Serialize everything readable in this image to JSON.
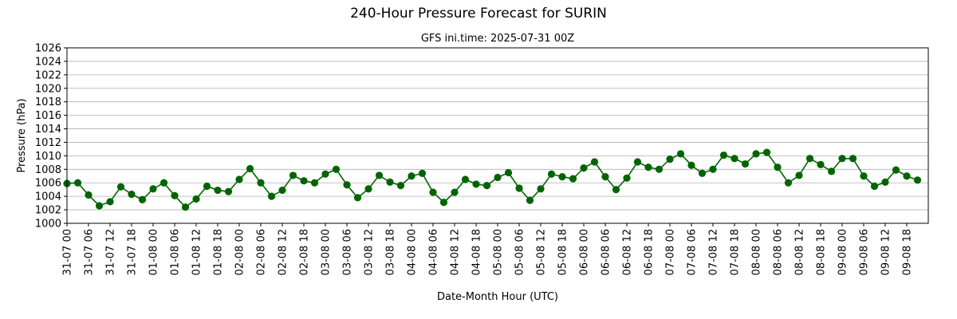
{
  "chart_data": {
    "type": "line",
    "title": "240-Hour Pressure Forecast for SURIN",
    "subtitle": "GFS ini.time: 2025-07-31 00Z",
    "xlabel": "Date-Month Hour (UTC)",
    "ylabel": "Pressure (hPa)",
    "ylim": [
      1000,
      1026
    ],
    "yticks": [
      1000,
      1002,
      1004,
      1006,
      1008,
      1010,
      1012,
      1014,
      1016,
      1018,
      1020,
      1022,
      1024,
      1026
    ],
    "grid": "horizontal",
    "color": "#006400",
    "x": [
      "31-07 00",
      "31-07 03",
      "31-07 06",
      "31-07 09",
      "31-07 12",
      "31-07 15",
      "31-07 18",
      "31-07 21",
      "01-08 00",
      "01-08 03",
      "01-08 06",
      "01-08 09",
      "01-08 12",
      "01-08 15",
      "01-08 18",
      "01-08 21",
      "02-08 00",
      "02-08 03",
      "02-08 06",
      "02-08 09",
      "02-08 12",
      "02-08 15",
      "02-08 18",
      "02-08 21",
      "03-08 00",
      "03-08 03",
      "03-08 06",
      "03-08 09",
      "03-08 12",
      "03-08 15",
      "03-08 18",
      "03-08 21",
      "04-08 00",
      "04-08 03",
      "04-08 06",
      "04-08 09",
      "04-08 12",
      "04-08 15",
      "04-08 18",
      "04-08 21",
      "05-08 00",
      "05-08 03",
      "05-08 06",
      "05-08 09",
      "05-08 12",
      "05-08 15",
      "05-08 18",
      "05-08 21",
      "06-08 00",
      "06-08 03",
      "06-08 06",
      "06-08 09",
      "06-08 12",
      "06-08 15",
      "06-08 18",
      "06-08 21",
      "07-08 00",
      "07-08 03",
      "07-08 06",
      "07-08 09",
      "07-08 12",
      "07-08 15",
      "07-08 18",
      "07-08 21",
      "08-08 00",
      "08-08 03",
      "08-08 06",
      "08-08 09",
      "08-08 12",
      "08-08 15",
      "08-08 18",
      "08-08 21",
      "09-08 00",
      "09-08 03",
      "09-08 06",
      "09-08 09",
      "09-08 12",
      "09-08 15",
      "09-08 18",
      "09-08 21"
    ],
    "values": [
      1005.9,
      1006.0,
      1004.2,
      1002.6,
      1003.2,
      1005.4,
      1004.3,
      1003.5,
      1005.1,
      1006.0,
      1004.1,
      1002.4,
      1003.6,
      1005.5,
      1004.9,
      1004.7,
      1006.5,
      1008.1,
      1006.0,
      1004.0,
      1004.9,
      1007.1,
      1006.3,
      1006.0,
      1007.3,
      1008.0,
      1005.7,
      1003.8,
      1005.1,
      1007.1,
      1006.1,
      1005.6,
      1007.0,
      1007.4,
      1004.6,
      1003.1,
      1004.6,
      1006.5,
      1005.8,
      1005.6,
      1006.8,
      1007.5,
      1005.2,
      1003.4,
      1005.1,
      1007.3,
      1006.9,
      1006.6,
      1008.2,
      1009.1,
      1006.9,
      1005.0,
      1006.7,
      1009.1,
      1008.3,
      1008.0,
      1009.5,
      1010.3,
      1008.6,
      1007.4,
      1008.0,
      1010.1,
      1009.6,
      1008.8,
      1010.3,
      1010.5,
      1008.3,
      1006.0,
      1007.1,
      1009.6,
      1008.7,
      1007.7,
      1009.6,
      1009.6,
      1007.0,
      1005.5,
      1006.1,
      1007.9,
      1007.0,
      1006.4
    ],
    "xtick_every": 2
  }
}
